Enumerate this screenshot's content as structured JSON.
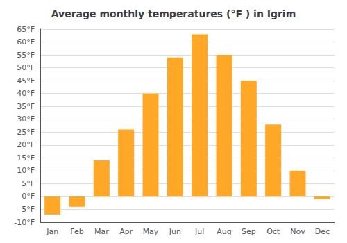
{
  "chart_data": {
    "type": "bar",
    "title": "Average monthly temperatures (°F ) in Igrim",
    "categories": [
      "Jan",
      "Feb",
      "Mar",
      "Apr",
      "May",
      "Jun",
      "Jul",
      "Aug",
      "Sep",
      "Oct",
      "Nov",
      "Dec"
    ],
    "values": [
      -7,
      -4,
      14,
      26,
      40,
      54,
      63,
      55,
      45,
      28,
      10,
      -1
    ],
    "color": "#FFA726",
    "ylim": [
      -10,
      65
    ],
    "yticks": [
      {
        "value": -10,
        "label": "-10°F"
      },
      {
        "value": -5,
        "label": "-5°F"
      },
      {
        "value": 0,
        "label": "0°F"
      },
      {
        "value": 5,
        "label": "5°F"
      },
      {
        "value": 10,
        "label": "10°F"
      },
      {
        "value": 15,
        "label": "15°F"
      },
      {
        "value": 20,
        "label": "20°F"
      },
      {
        "value": 25,
        "label": "25°F"
      },
      {
        "value": 30,
        "label": "30°F"
      },
      {
        "value": 35,
        "label": "35°F"
      },
      {
        "value": 40,
        "label": "40°F"
      },
      {
        "value": 45,
        "label": "45°F"
      },
      {
        "value": 50,
        "label": "50°F"
      },
      {
        "value": 55,
        "label": "55°F"
      },
      {
        "value": 60,
        "label": "60°F"
      },
      {
        "value": 65,
        "label": "65°F"
      }
    ],
    "grid": true
  }
}
